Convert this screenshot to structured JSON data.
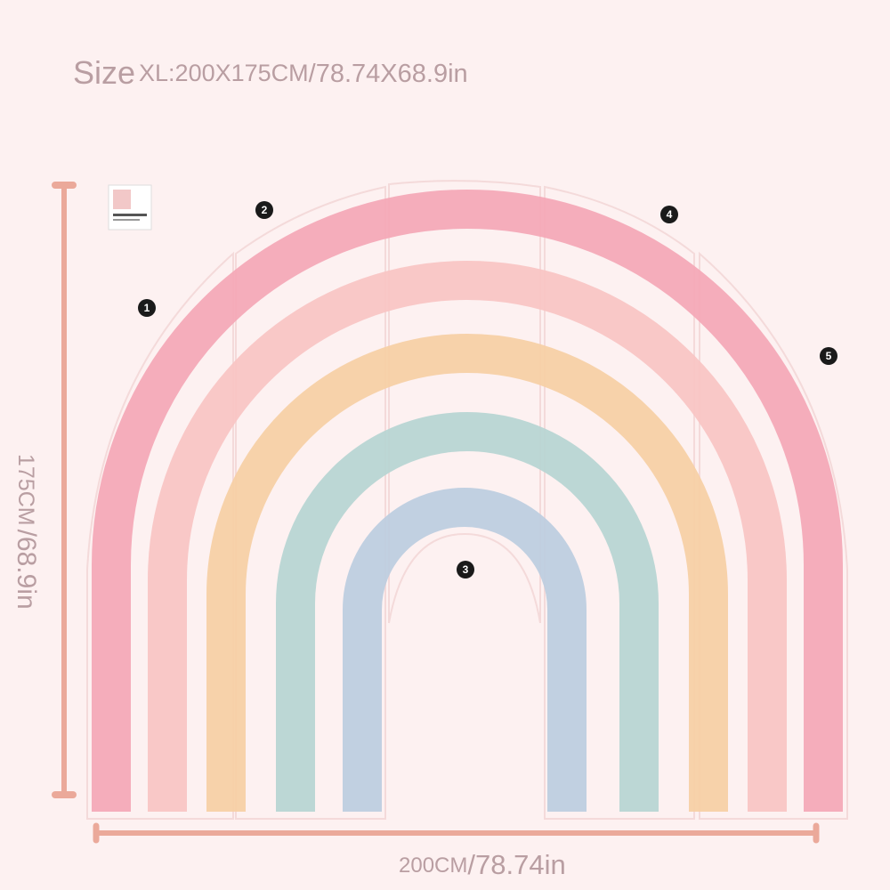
{
  "header": {
    "size_word": "Size",
    "size_xl": "XL:200X175CM",
    "size_in": "/78.74X68.9in"
  },
  "dimensions": {
    "height_cm": "175CM",
    "height_in": "/68.9in",
    "width_cm": "200CM",
    "width_in": "/78.74in"
  },
  "panels": [
    {
      "label": "1"
    },
    {
      "label": "2"
    },
    {
      "label": "3"
    },
    {
      "label": "4"
    },
    {
      "label": "5"
    }
  ]
}
